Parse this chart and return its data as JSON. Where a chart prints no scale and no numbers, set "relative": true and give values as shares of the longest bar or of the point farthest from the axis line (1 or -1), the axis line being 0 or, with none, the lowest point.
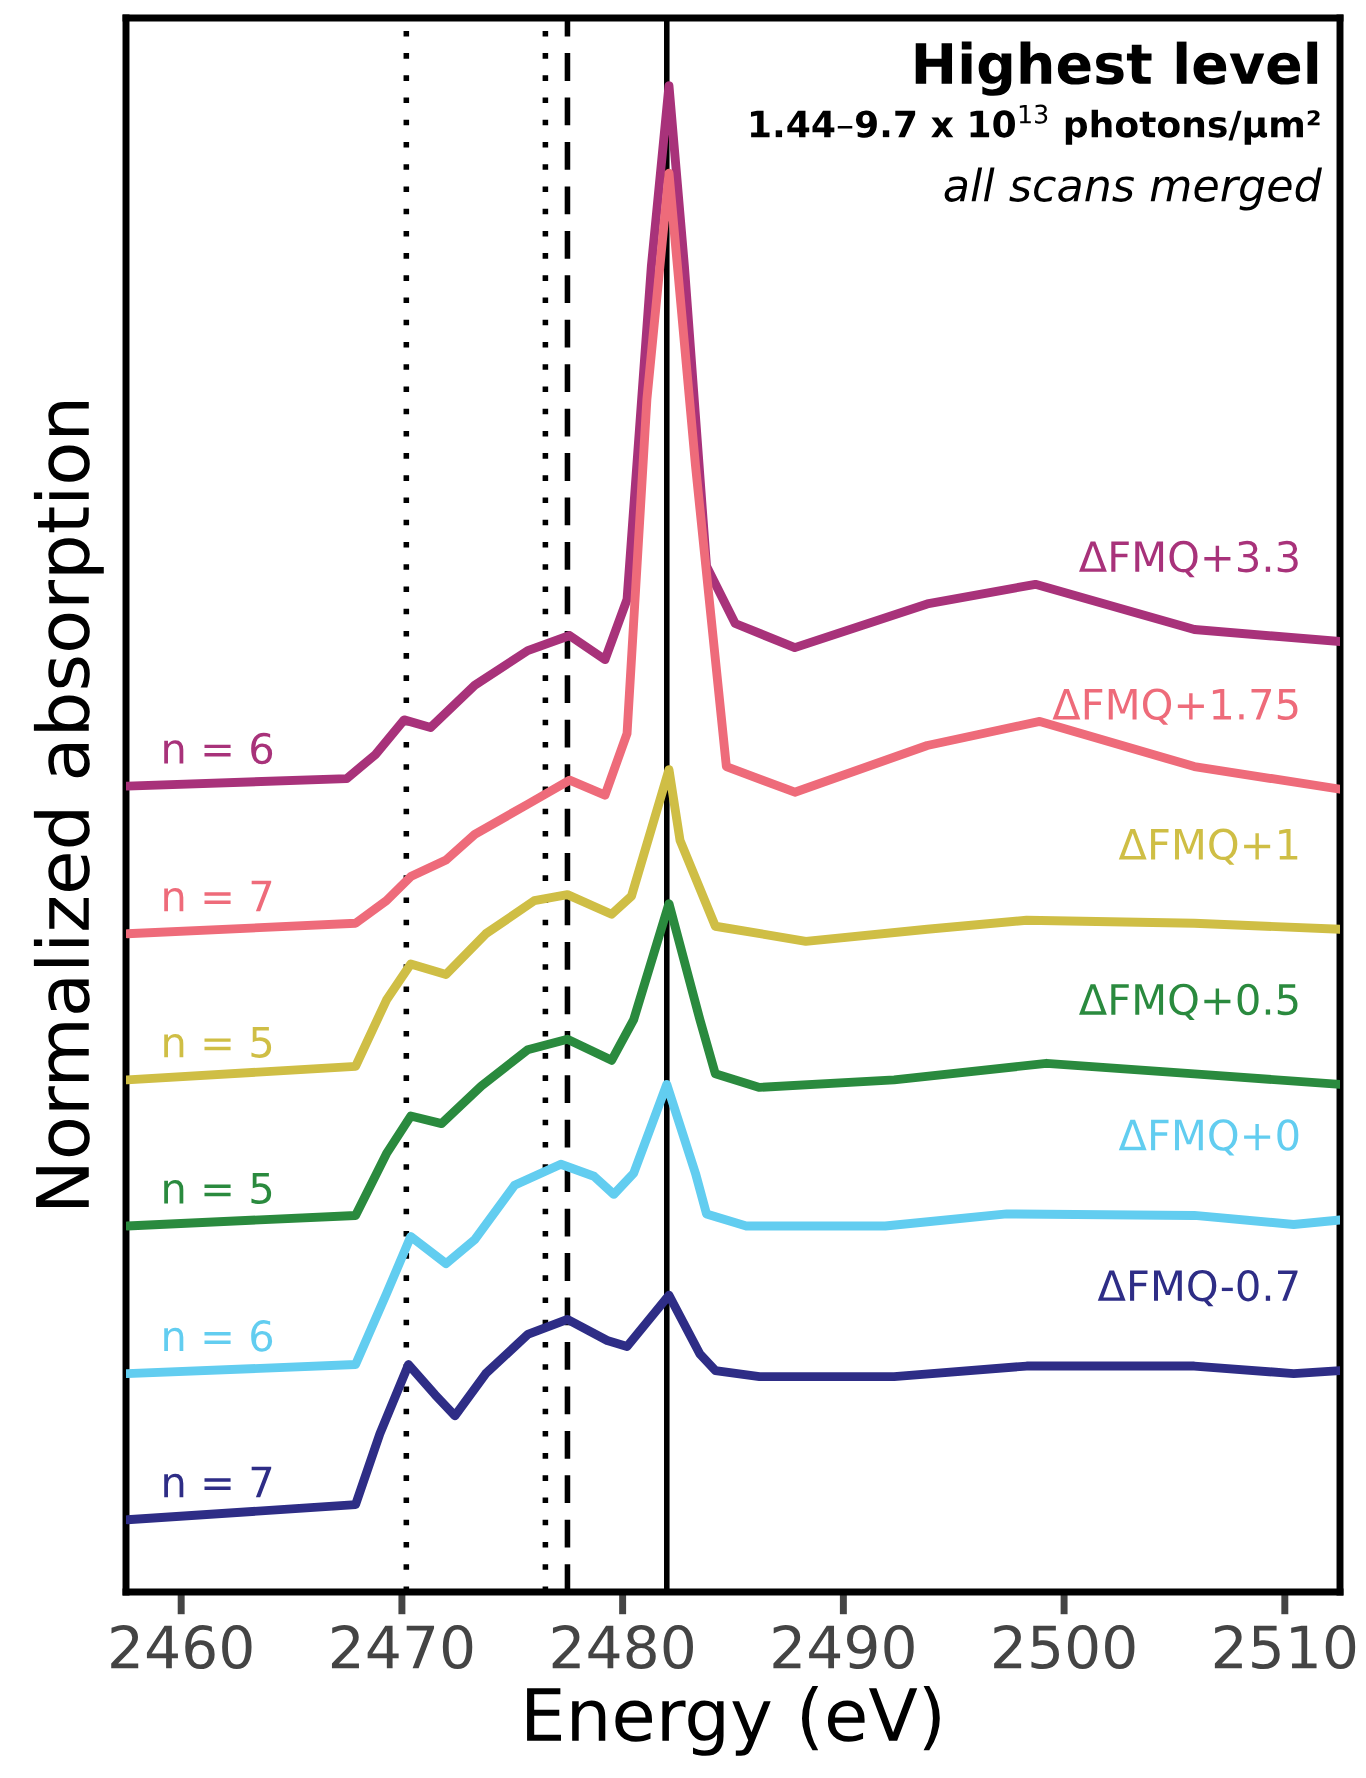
{
  "chart_data": {
    "type": "line",
    "relative": true,
    "xlabel": "Energy (eV)",
    "ylabel": "Normalized absorption",
    "xlim": [
      2457.5,
      2512.5
    ],
    "xticks": [
      2460,
      2470,
      2480,
      2490,
      2500,
      2510
    ],
    "grid": false,
    "legend": false,
    "marker": "none",
    "line_style": "solid",
    "tick_labels": "x",
    "annotations": [
      "Highest level",
      "1.44–9.7 x 10$^{13}$ photons/μm²",
      "all scans merged",
      "n = 6",
      "n = 7",
      "n = 5",
      "n = 5",
      "n = 6",
      "n = 7"
    ],
    "ref_lines": [
      {
        "axis": "x",
        "value": 2470.2,
        "color": "#000000",
        "line_style": "dotted"
      },
      {
        "axis": "x",
        "value": 2476.5,
        "color": "#000000",
        "line_style": "dotted"
      },
      {
        "axis": "x",
        "value": 2477.5,
        "color": "#000000",
        "line_style": "dashed"
      },
      {
        "axis": "x",
        "value": 2482.0,
        "color": "#000000",
        "line_style": "solid"
      }
    ],
    "series": [
      {
        "name": "ΔFMQ+3.3",
        "color": "#a8327a",
        "x": [
          2457.55,
          2467.5,
          2468.8,
          2470.1,
          2471.3,
          2473.3,
          2475.7,
          2477.6,
          2479.2,
          2480.2,
          2481.3,
          2482.1,
          2482.8,
          2483.8,
          2485.1,
          2487.8,
          2493.8,
          2498.7,
          2505.9,
          2512.5
        ],
        "values": [
          0.535,
          0.54,
          0.556,
          0.579,
          0.574,
          0.602,
          0.625,
          0.635,
          0.619,
          0.659,
          0.88,
          1.0,
          0.88,
          0.681,
          0.643,
          0.627,
          0.656,
          0.669,
          0.639,
          0.631
        ]
      },
      {
        "name": "ΔFMQ+1.75",
        "color": "#ee6b7a",
        "x": [
          2457.55,
          2467.9,
          2469.3,
          2470.4,
          2472.0,
          2473.3,
          2475.7,
          2477.6,
          2479.2,
          2480.2,
          2481.1,
          2482.1,
          2483.3,
          2484.7,
          2487.8,
          2493.8,
          2498.9,
          2505.9,
          2512.5
        ],
        "values": [
          0.437,
          0.444,
          0.459,
          0.475,
          0.486,
          0.503,
          0.523,
          0.539,
          0.529,
          0.57,
          0.792,
          0.942,
          0.748,
          0.548,
          0.531,
          0.562,
          0.578,
          0.548,
          0.533
        ]
      },
      {
        "name": "ΔFMQ+1",
        "color": "#cfbe45",
        "x": [
          2457.55,
          2467.9,
          2469.3,
          2470.4,
          2472.0,
          2473.8,
          2476.0,
          2477.5,
          2479.5,
          2480.4,
          2482.1,
          2482.6,
          2484.2,
          2488.3,
          2493.8,
          2498.3,
          2505.9,
          2512.5
        ],
        "values": [
          0.34,
          0.349,
          0.393,
          0.417,
          0.41,
          0.437,
          0.459,
          0.463,
          0.45,
          0.462,
          0.546,
          0.499,
          0.442,
          0.432,
          0.44,
          0.446,
          0.444,
          0.44
        ]
      },
      {
        "name": "ΔFMQ+0.5",
        "color": "#2a8a3e",
        "x": [
          2457.55,
          2467.9,
          2469.3,
          2470.4,
          2471.8,
          2473.6,
          2475.7,
          2477.5,
          2479.5,
          2480.5,
          2482.1,
          2483.5,
          2484.2,
          2486.2,
          2492.3,
          2499.2,
          2505.9,
          2512.5
        ],
        "values": [
          0.243,
          0.25,
          0.291,
          0.316,
          0.311,
          0.336,
          0.36,
          0.367,
          0.353,
          0.38,
          0.457,
          0.38,
          0.344,
          0.335,
          0.34,
          0.351,
          0.344,
          0.337
        ]
      },
      {
        "name": "ΔFMQ+0",
        "color": "#62cdf0",
        "x": [
          2457.55,
          2467.9,
          2469.3,
          2470.4,
          2472.0,
          2473.3,
          2475.1,
          2477.2,
          2478.7,
          2479.6,
          2480.5,
          2482.0,
          2483.3,
          2483.8,
          2485.6,
          2491.9,
          2497.4,
          2505.9,
          2510.4,
          2512.5
        ],
        "values": [
          0.145,
          0.151,
          0.198,
          0.236,
          0.218,
          0.234,
          0.27,
          0.284,
          0.276,
          0.264,
          0.278,
          0.337,
          0.278,
          0.251,
          0.243,
          0.243,
          0.251,
          0.25,
          0.244,
          0.247
        ]
      },
      {
        "name": "ΔFMQ-0.7",
        "color": "#2e2d86",
        "x": [
          2457.55,
          2467.9,
          2469.0,
          2470.3,
          2471.5,
          2472.4,
          2473.8,
          2475.7,
          2477.5,
          2479.3,
          2480.2,
          2482.1,
          2483.5,
          2484.2,
          2486.2,
          2492.3,
          2498.3,
          2505.9,
          2510.4,
          2512.5
        ],
        "values": [
          0.048,
          0.058,
          0.105,
          0.151,
          0.131,
          0.117,
          0.145,
          0.171,
          0.181,
          0.167,
          0.163,
          0.197,
          0.158,
          0.147,
          0.143,
          0.143,
          0.15,
          0.15,
          0.145,
          0.147
        ]
      }
    ]
  }
}
